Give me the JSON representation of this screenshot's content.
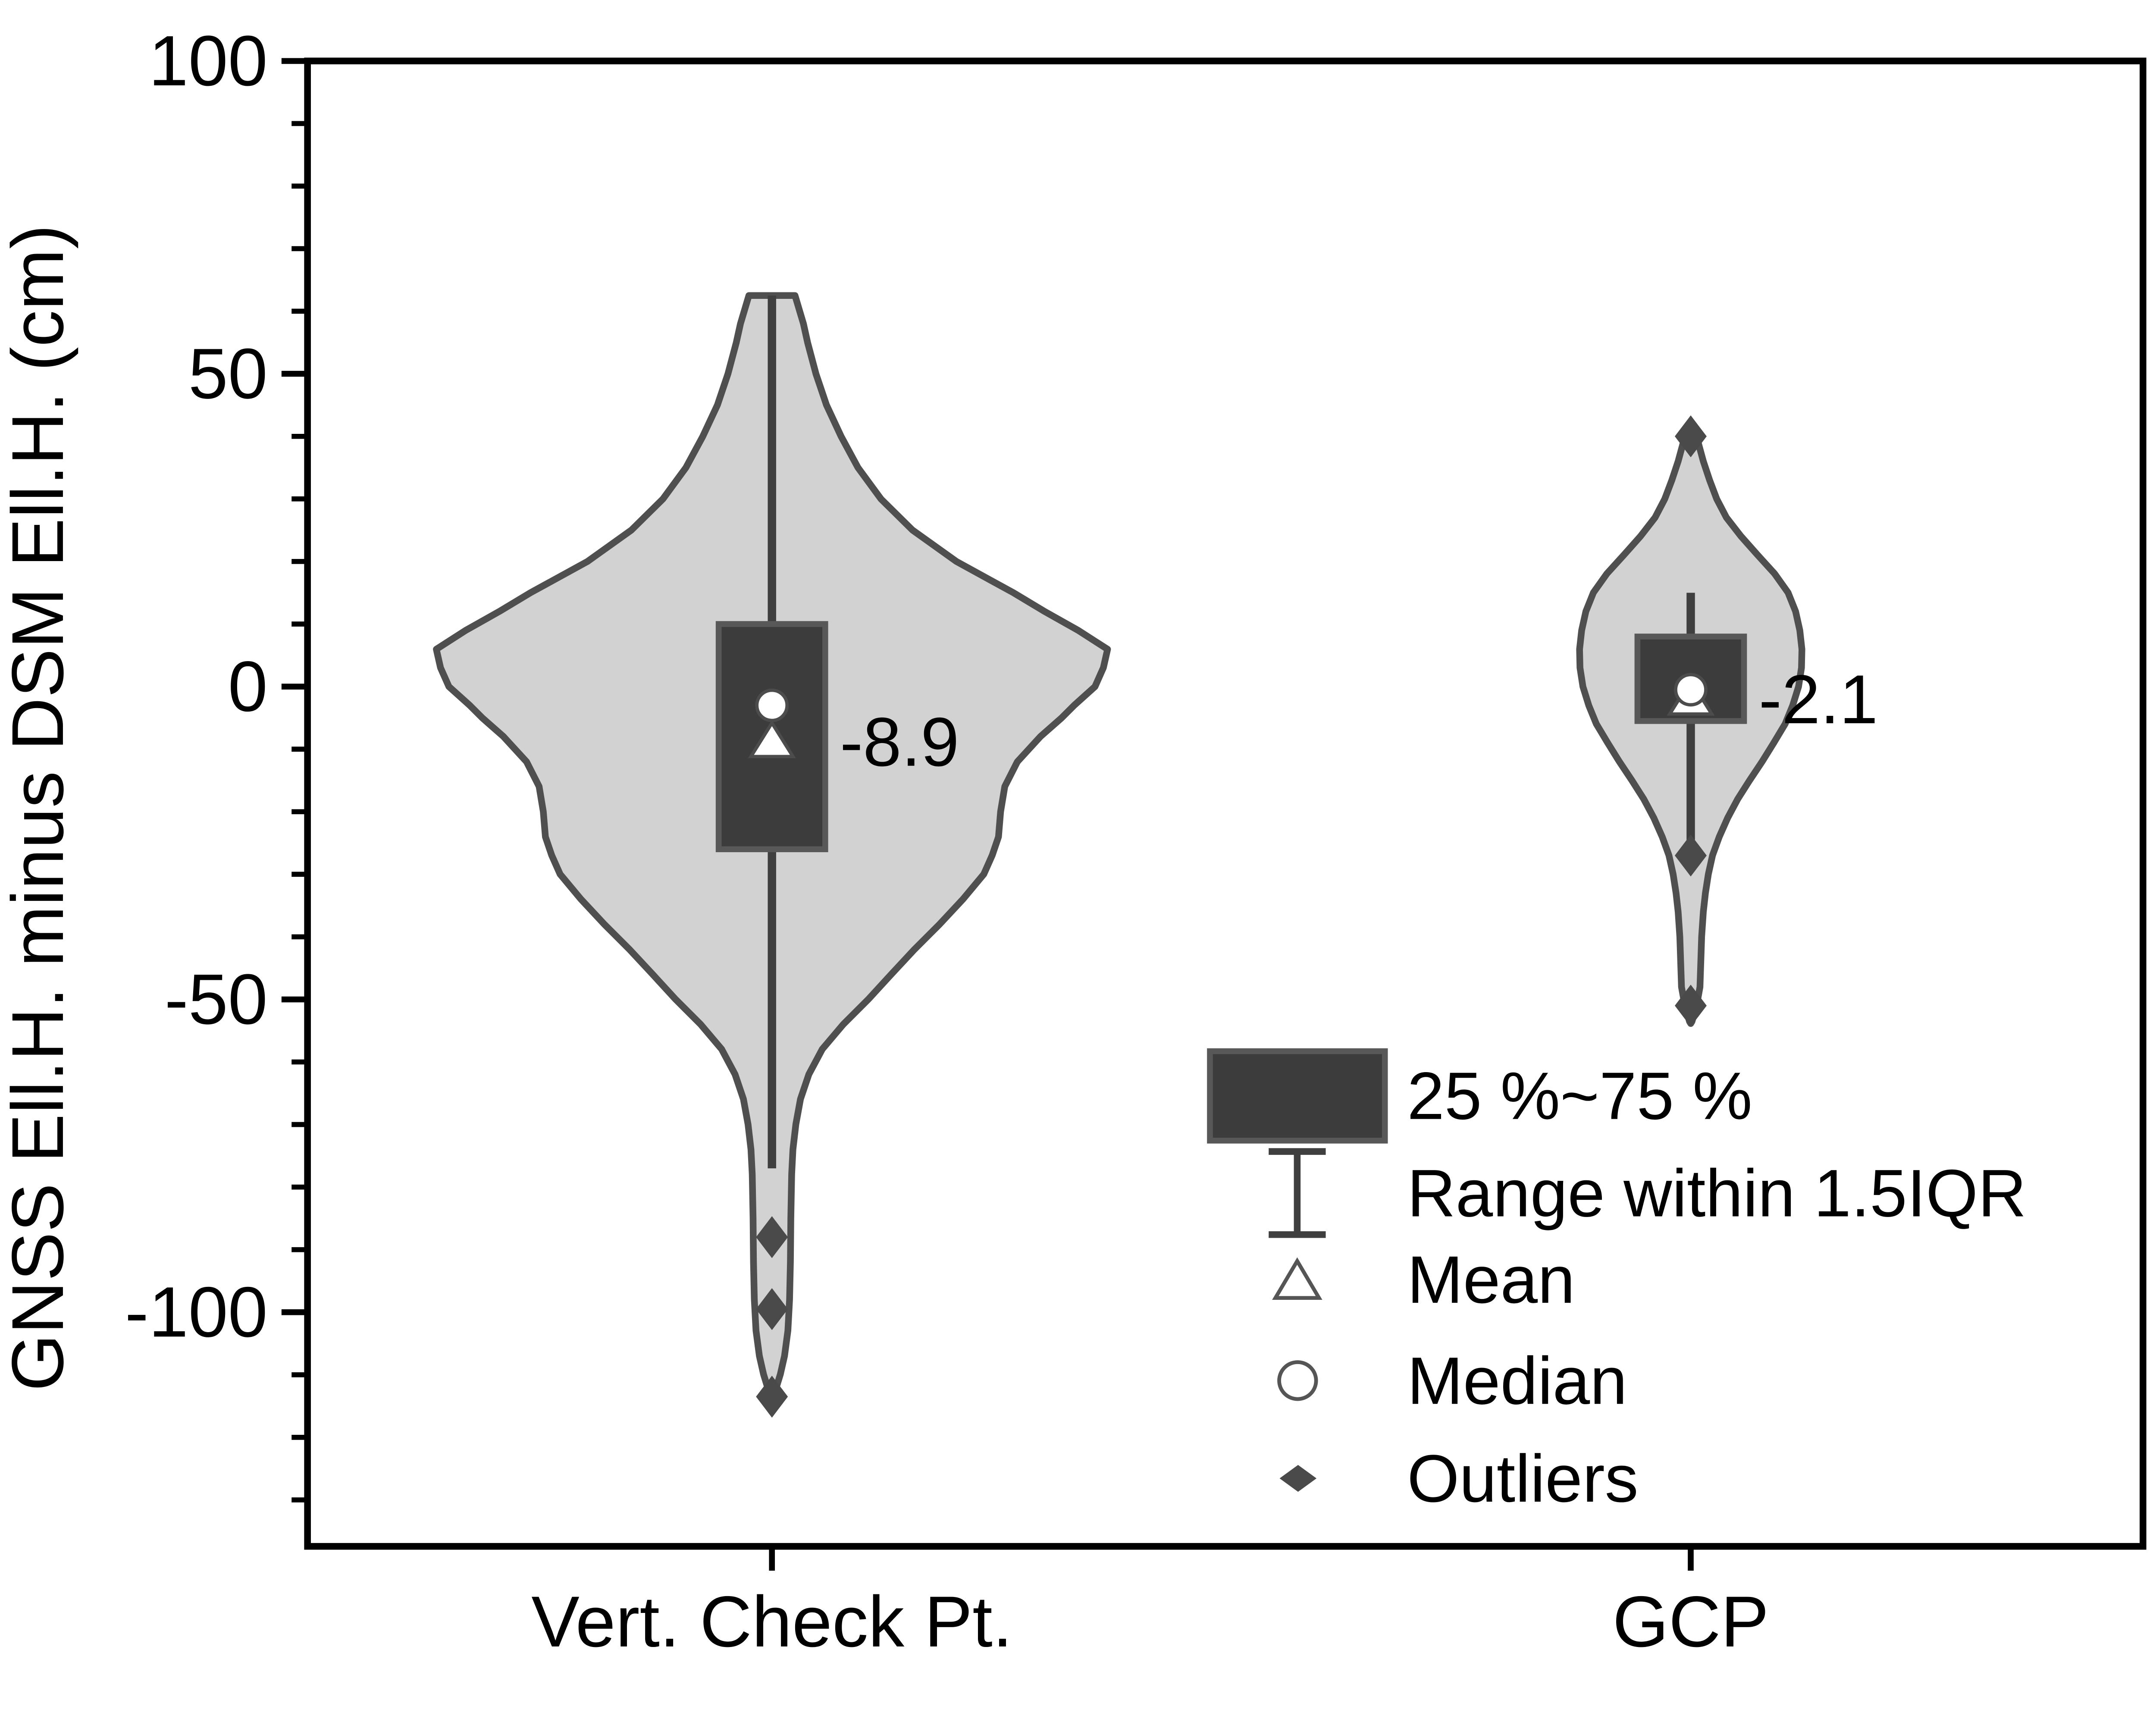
{
  "colors": {
    "background": "#ffffff",
    "violin_fill": "#d2d2d2",
    "violin_stroke": "#4f4f4f",
    "box_fill": "#3c3c3c",
    "box_stroke": "#585858",
    "whisker": "#3f3f3f",
    "marker_fill": "#ffffff",
    "marker_stroke": "#4c4c4c",
    "outlier": "#4a4a4a",
    "frame_and_text": "#000000"
  },
  "chart_data": {
    "type": "violin",
    "title": "",
    "xlabel": "",
    "ylabel": "GNSS Ell.H. minus DSM Ell.H. (cm)",
    "ylim": [
      -137,
      100
    ],
    "grid": false,
    "y_major_ticks": [
      100,
      50,
      0,
      -50,
      -100
    ],
    "y_minor_ticks": [
      90,
      80,
      70,
      60,
      40,
      30,
      20,
      10,
      -10,
      -20,
      -30,
      -40,
      -60,
      -70,
      -80,
      -90,
      -110,
      -120,
      -130
    ],
    "categories": [
      "Vert. Check Pt.",
      "GCP"
    ],
    "legend_position": "lower right",
    "legend_labels": [
      "25 %~75 %",
      "Range within 1.5IQR",
      "Mean",
      "Median",
      "Outliers"
    ],
    "series": [
      {
        "name": "Vert. Check Pt.",
        "mean": -8.9,
        "median": -3.0,
        "q1": -26,
        "q3": 10,
        "whisker_low": -77,
        "whisker_high": 62.5,
        "violin_min": -113.5,
        "violin_max": 62.5,
        "outliers": [
          -88,
          -99.5,
          -113.5
        ],
        "annotation": "-8.9"
      },
      {
        "name": "GCP",
        "mean": -2.1,
        "median": -0.5,
        "q1": -5.5,
        "q3": 8,
        "whisker_low": -24.5,
        "whisker_high": 15,
        "violin_min": -53.5,
        "violin_max": 41,
        "outliers": [
          40,
          -27,
          -51
        ],
        "annotation": "-2.1"
      }
    ]
  }
}
